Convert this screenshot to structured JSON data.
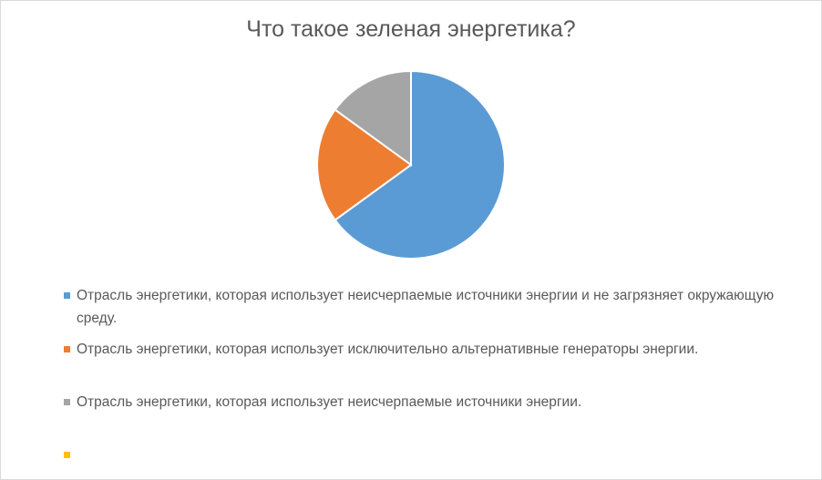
{
  "chart_data": {
    "type": "pie",
    "title": "Что такое зеленая энергетика?",
    "legend_position": "bottom",
    "series": [
      {
        "values": [
          65,
          20,
          15,
          0
        ],
        "labels": [
          "Отрасль энергетики, которая использует неисчерпаемые источники энергии и не загрязняет окружающую среду.",
          "Отрасль энергетики, которая использует исключительно альтернативные генераторы энергии.",
          "Отрасль энергетики, которая использует неисчерпаемые источники энергии.",
          ""
        ],
        "colors": [
          "#5b9bd5",
          "#ed7d31",
          "#a5a5a5",
          "#ffc000"
        ]
      }
    ]
  }
}
